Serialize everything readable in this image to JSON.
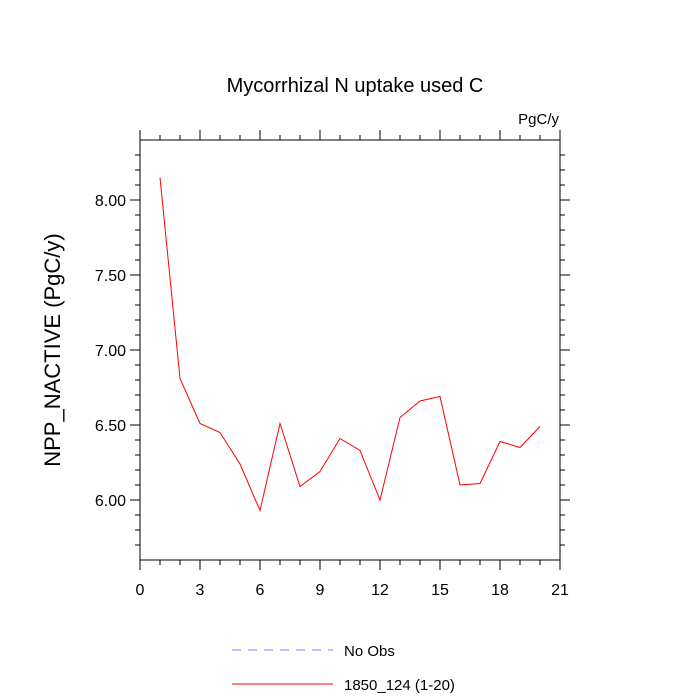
{
  "chart_data": {
    "type": "line",
    "title": "Mycorrhizal N uptake used C",
    "units_label": "PgC/y",
    "ylabel": "NPP_NACTIVE  (PgC/y)",
    "xlabel": "",
    "xlim": [
      0,
      21
    ],
    "ylim": [
      5.6,
      8.4
    ],
    "x_ticks": [
      0,
      3,
      6,
      9,
      12,
      15,
      18,
      21
    ],
    "x_tick_labels": [
      "0",
      "3",
      "6",
      "9",
      "12",
      "15",
      "18",
      "21"
    ],
    "y_ticks": [
      6.0,
      6.5,
      7.0,
      7.5,
      8.0
    ],
    "y_tick_labels": [
      "6.00",
      "6.50",
      "7.00",
      "7.50",
      "8.00"
    ],
    "grid": false,
    "legend_position": "bottom",
    "series": [
      {
        "name": "No Obs",
        "color": "#8080ff",
        "dash": "dashed",
        "x": [],
        "values": []
      },
      {
        "name": "1850_124 (1-20)",
        "color": "#ff0000",
        "dash": "solid",
        "x": [
          1,
          2,
          3,
          4,
          5,
          6,
          7,
          8,
          9,
          10,
          11,
          12,
          13,
          14,
          15,
          16,
          17,
          18,
          19,
          20
        ],
        "values": [
          8.15,
          6.81,
          6.51,
          6.45,
          6.24,
          5.93,
          6.51,
          6.09,
          6.19,
          6.41,
          6.33,
          6.0,
          6.55,
          6.66,
          6.69,
          6.1,
          6.11,
          6.39,
          6.35,
          6.49
        ]
      }
    ]
  }
}
